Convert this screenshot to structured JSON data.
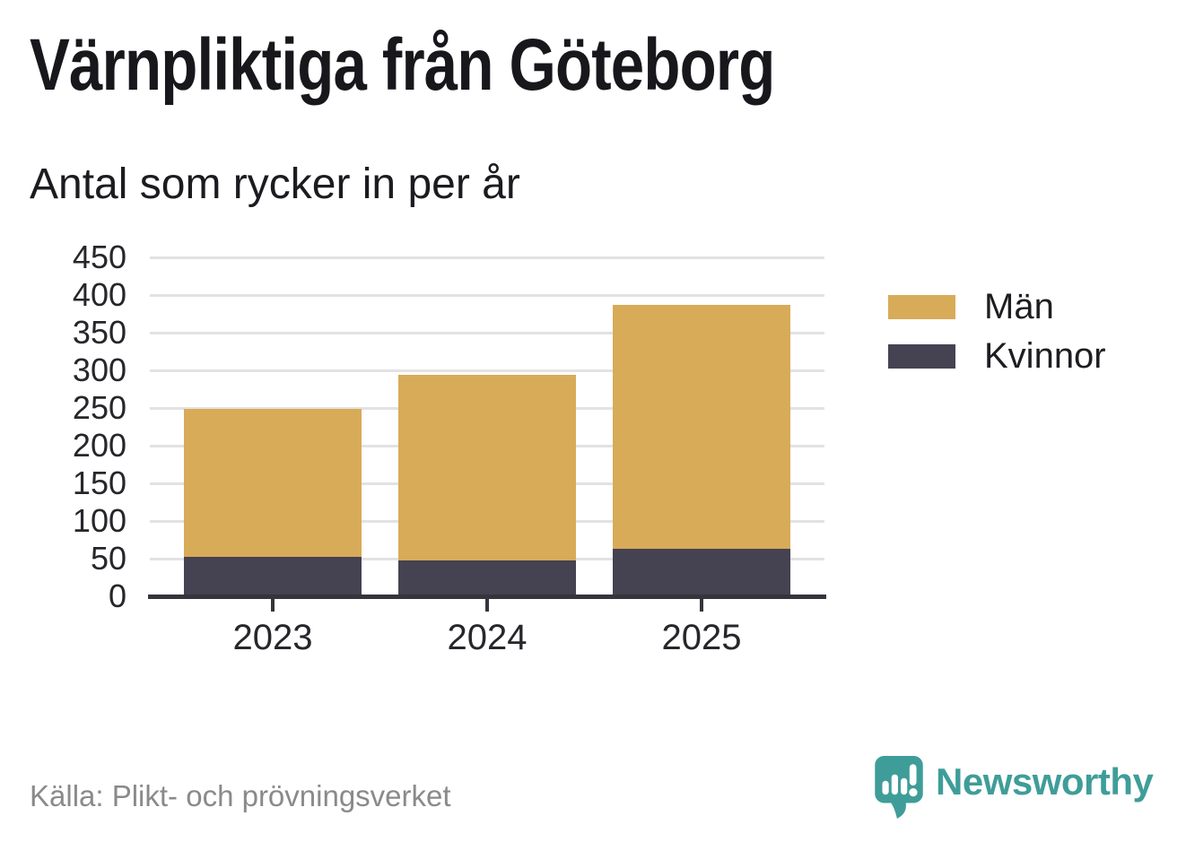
{
  "title": "Värnpliktiga från Göteborg",
  "subtitle": "Antal som rycker in per år",
  "source": "Källa: Plikt- och prövningsverket",
  "brand": {
    "name": "Newsworthy",
    "color": "#3F9D99"
  },
  "colors": {
    "man": "#D8AB58",
    "kvinnor": "#454251",
    "axis": "#36343C",
    "gridline": "#E2E2E4",
    "tick_label": "#26262B",
    "source_text": "#8A8A8A",
    "background": "#FFFFFF"
  },
  "legend": [
    {
      "label": "Män",
      "color": "#D8AB58"
    },
    {
      "label": "Kvinnor",
      "color": "#454251"
    }
  ],
  "chart_data": {
    "type": "bar",
    "stacked": true,
    "title": "Värnpliktiga från Göteborg",
    "subtitle": "Antal som rycker in per år",
    "categories": [
      "2023",
      "2024",
      "2025"
    ],
    "series": [
      {
        "name": "Kvinnor",
        "color": "#454251",
        "values": [
          52,
          48,
          63
        ]
      },
      {
        "name": "Män",
        "color": "#D8AB58",
        "values": [
          197,
          246,
          324
        ]
      }
    ],
    "totals": [
      249,
      294,
      387
    ],
    "xlabel": "",
    "ylabel": "",
    "ylim": [
      0,
      450
    ],
    "ytick_step": 50,
    "yticks": [
      0,
      50,
      100,
      150,
      200,
      250,
      300,
      350,
      400,
      450
    ],
    "grid": "horizontal",
    "legend_position": "right"
  }
}
